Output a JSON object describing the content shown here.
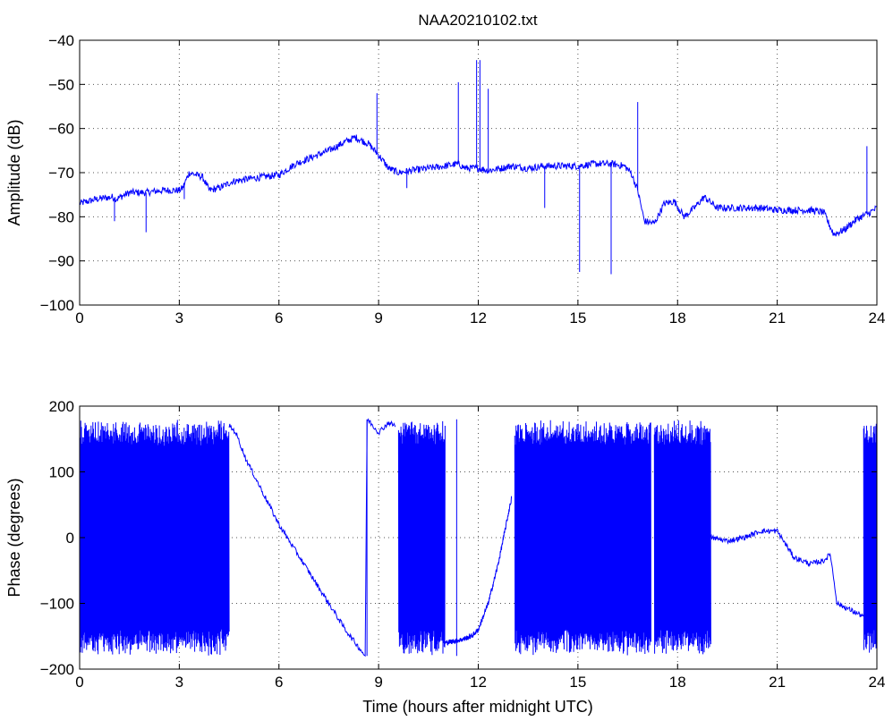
{
  "chart_data": [
    {
      "type": "line",
      "title": "NAA20210102.txt",
      "xlabel": "",
      "ylabel": "Amplitude (dB)",
      "xlim": [
        0,
        24
      ],
      "ylim": [
        -100,
        -40
      ],
      "xticks": [
        0,
        3,
        6,
        9,
        12,
        15,
        18,
        21,
        24
      ],
      "yticks": [
        -100,
        -90,
        -80,
        -70,
        -60,
        -50,
        -40
      ],
      "grid": true,
      "color": "#0000ff",
      "x": [
        0,
        0.5,
        1,
        1.1,
        1.5,
        2,
        2.5,
        3,
        3.1,
        3.3,
        3.7,
        3.9,
        4.2,
        4.6,
        5,
        5.5,
        6,
        6.5,
        7,
        7.5,
        8,
        8.3,
        8.7,
        9,
        9.3,
        9.6,
        10,
        10.5,
        11,
        11.4,
        11.6,
        12,
        12.3,
        12.7,
        13,
        13.5,
        14,
        14.5,
        15,
        15.5,
        16,
        16.4,
        16.6,
        16.8,
        17,
        17.3,
        17.6,
        17.9,
        18.2,
        18.5,
        18.8,
        19.2,
        19.6,
        20,
        20.5,
        21,
        21.5,
        22,
        22.4,
        22.7,
        23,
        23.4,
        23.8,
        24
      ],
      "y": [
        -77,
        -76,
        -75.5,
        -76,
        -74.5,
        -74.5,
        -74,
        -74,
        -73.5,
        -70,
        -71,
        -74,
        -73.5,
        -72,
        -71.5,
        -71,
        -70.5,
        -68,
        -66.5,
        -65,
        -63,
        -62,
        -63.5,
        -66,
        -69,
        -70,
        -69.5,
        -69,
        -68.5,
        -68,
        -69,
        -69,
        -69.5,
        -69,
        -68.5,
        -69,
        -68.5,
        -68.5,
        -68.5,
        -68,
        -68,
        -68.5,
        -70,
        -74,
        -81,
        -81.5,
        -77,
        -76.5,
        -80,
        -78,
        -75.5,
        -78,
        -78,
        -78,
        -78,
        -78.5,
        -78.5,
        -78.5,
        -79,
        -84,
        -83,
        -80.5,
        -79,
        -78
      ],
      "spikes": [
        {
          "x": 1.05,
          "y": -81
        },
        {
          "x": 2,
          "y": -83.5
        },
        {
          "x": 3.15,
          "y": -76
        },
        {
          "x": 8.95,
          "y": -52
        },
        {
          "x": 9.85,
          "y": -73.5
        },
        {
          "x": 11.4,
          "y": -49.5
        },
        {
          "x": 11.95,
          "y": -44.5
        },
        {
          "x": 12.05,
          "y": -44.5
        },
        {
          "x": 12.3,
          "y": -51
        },
        {
          "x": 14,
          "y": -78
        },
        {
          "x": 15.05,
          "y": -92.5
        },
        {
          "x": 16,
          "y": -93
        },
        {
          "x": 16.8,
          "y": -54
        },
        {
          "x": 23.7,
          "y": -64
        },
        {
          "x": 24,
          "y": -82
        }
      ]
    },
    {
      "type": "line",
      "title": "",
      "xlabel": "Time (hours after midnight UTC)",
      "ylabel": "Phase (degrees)",
      "xlim": [
        0,
        24
      ],
      "ylim": [
        -200,
        200
      ],
      "xticks": [
        0,
        3,
        6,
        9,
        12,
        15,
        18,
        21,
        24
      ],
      "yticks": [
        -200,
        -100,
        0,
        100,
        200
      ],
      "grid": true,
      "color": "#0000ff",
      "wrapped_segments": [
        {
          "x": [
            0,
            4.5
          ],
          "amplitude": 180
        },
        {
          "x": [
            9.6,
            11.0
          ],
          "amplitude": 180
        },
        {
          "x": [
            13.1,
            17.2
          ],
          "amplitude": 180
        },
        {
          "x": [
            17.3,
            19.0
          ],
          "amplitude": 180
        },
        {
          "x": [
            23.6,
            24
          ],
          "amplitude": 180
        }
      ],
      "x": [
        4.5,
        4.7,
        5,
        6,
        7,
        8,
        8.6,
        8.65,
        8.7,
        9.0,
        9.3,
        9.5
      ],
      "y": [
        170,
        160,
        120,
        20,
        -60,
        -140,
        -180,
        180,
        178,
        160,
        175,
        170
      ],
      "x2": [
        11.0,
        11.5,
        11.8,
        12.0,
        12.3,
        12.6,
        13.0
      ],
      "y2": [
        -160,
        -155,
        -150,
        -140,
        -100,
        -40,
        60
      ],
      "x3": [
        19.0,
        19.5,
        20,
        20.5,
        21,
        21.5,
        22,
        22.4,
        22.6,
        22.8,
        23.2,
        23.6
      ],
      "y3": [
        0,
        -5,
        0,
        10,
        10,
        -30,
        -40,
        -35,
        -25,
        -100,
        -110,
        -120
      ]
    }
  ]
}
